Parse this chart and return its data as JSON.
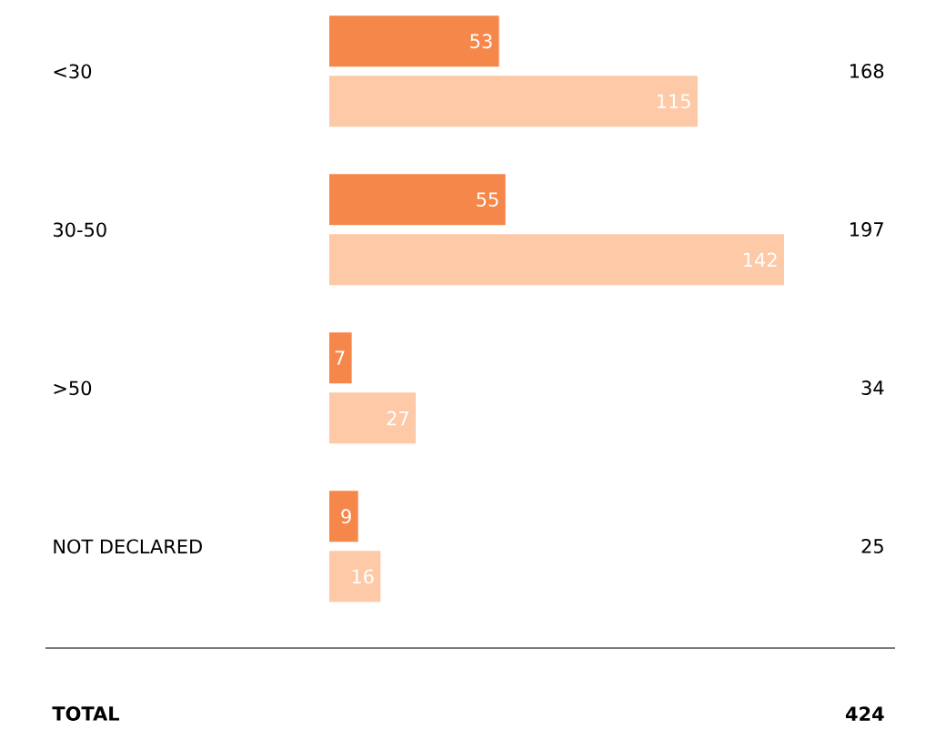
{
  "chart_data": {
    "type": "bar",
    "orientation": "horizontal",
    "categories": [
      "<30",
      "30-50",
      ">50",
      "NOT DECLARED"
    ],
    "series": [
      {
        "color": "#f5874a",
        "values": [
          53,
          55,
          7,
          9
        ]
      },
      {
        "color": "#fdc9a6",
        "values": [
          115,
          142,
          27,
          16
        ]
      }
    ],
    "data_labels": true,
    "annotations": [
      "168",
      "197",
      "34",
      "25",
      "TOTAL",
      "424"
    ]
  }
}
